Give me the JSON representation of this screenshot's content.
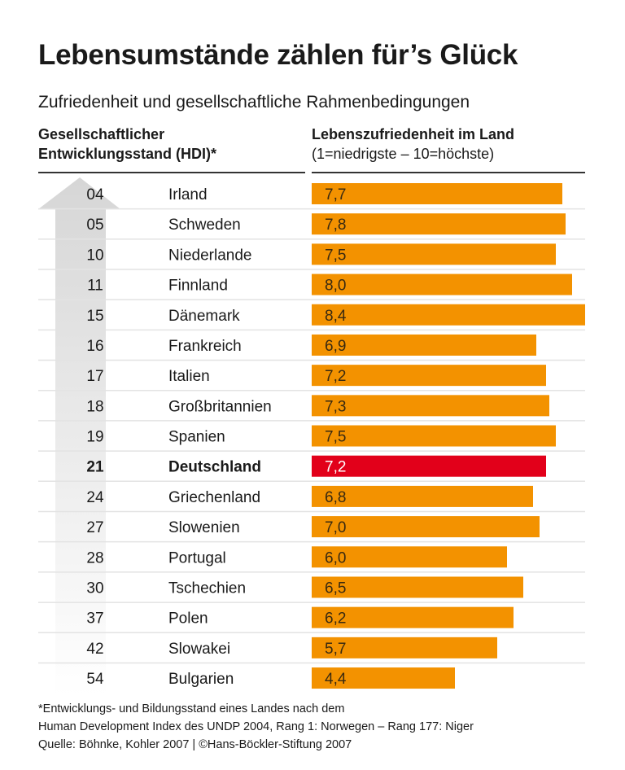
{
  "title": "Lebensumstände zählen für’s Glück",
  "subtitle": "Zufriedenheit und gesellschaftliche Rahmenbedingungen",
  "header_left": {
    "line1": "Gesellschaftlicher",
    "line2": "Entwicklungsstand (HDI)*"
  },
  "header_right": {
    "line1": "Lebenszufriedenheit im Land",
    "line2": "(1=niedrigste – 10=höchste)"
  },
  "colors": {
    "bar": "#F39200",
    "highlight": "#E2001A",
    "arrow": "#dcdcdc"
  },
  "chart_data": {
    "type": "bar",
    "orientation": "horizontal",
    "xlim": [
      0,
      10
    ],
    "highlight": "Deutschland",
    "categories": [
      "Irland",
      "Schweden",
      "Niederlande",
      "Finnland",
      "Dänemark",
      "Frankreich",
      "Italien",
      "Großbritannien",
      "Spanien",
      "Deutschland",
      "Griechenland",
      "Slowenien",
      "Portugal",
      "Tschechien",
      "Polen",
      "Slowakei",
      "Bulgarien"
    ],
    "hdi_rank": [
      "04",
      "05",
      "10",
      "11",
      "15",
      "16",
      "17",
      "18",
      "19",
      "21",
      "24",
      "27",
      "28",
      "30",
      "37",
      "42",
      "54"
    ],
    "values": [
      7.7,
      7.8,
      7.5,
      8.0,
      8.4,
      6.9,
      7.2,
      7.3,
      7.5,
      7.2,
      6.8,
      7.0,
      6.0,
      6.5,
      6.2,
      5.7,
      4.4
    ],
    "labels": [
      "7,7",
      "7,8",
      "7,5",
      "8,0",
      "8,4",
      "6,9",
      "7,2",
      "7,3",
      "7,5",
      "7,2",
      "6,8",
      "7,0",
      "6,0",
      "6,5",
      "6,2",
      "5,7",
      "4,4"
    ]
  },
  "footnote": {
    "line1": "*Entwicklungs- und Bildungsstand eines Landes nach dem",
    "line2": "Human Development Index des UNDP 2004, Rang 1: Norwegen – Rang 177: Niger",
    "line3": "Quelle: Böhnke, Kohler 2007 | ©Hans-Böckler-Stiftung 2007"
  }
}
